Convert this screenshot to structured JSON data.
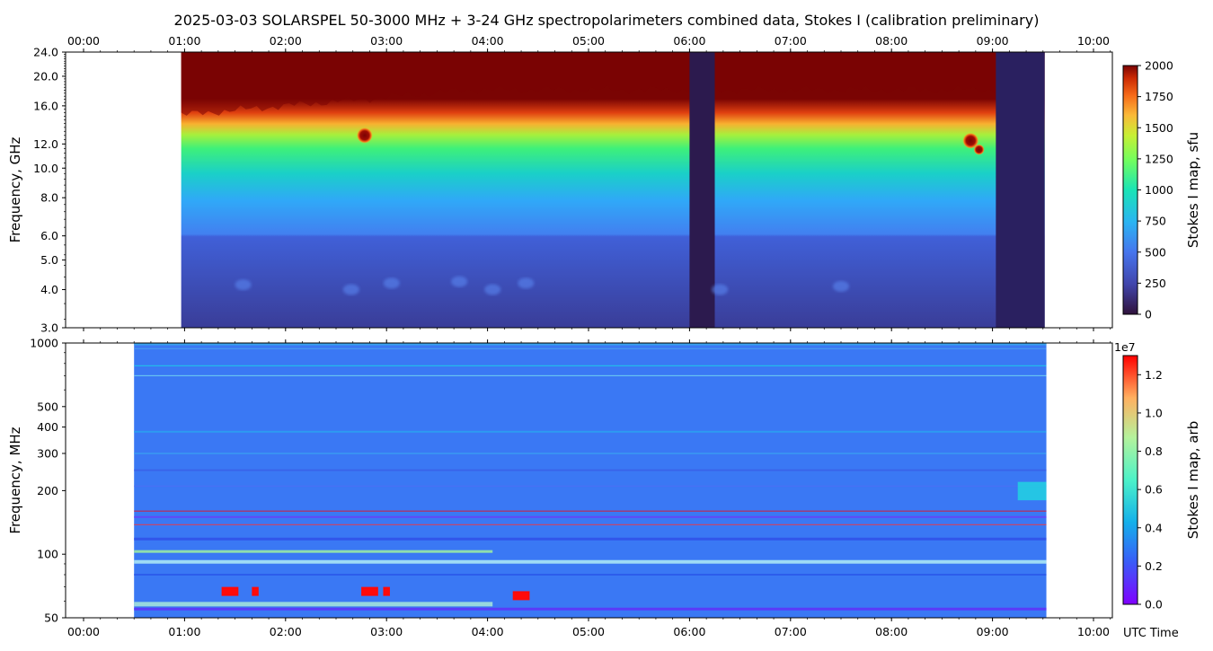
{
  "title": "2025-03-03  SOLARSPEL  50-3000 MHz  +  3-24 GHz  spectropolarimeters combined data,  Stokes I  (calibration preliminary)",
  "x_axis_title": "UTC Time",
  "time_ticks": [
    "00:00",
    "01:00",
    "02:00",
    "03:00",
    "04:00",
    "05:00",
    "06:00",
    "07:00",
    "08:00",
    "09:00",
    "10:00"
  ],
  "chart_data": [
    {
      "type": "heatmap",
      "name": "top-panel",
      "ylabel": "Frequency, GHz",
      "y_scale": "log",
      "ylim": [
        3.0,
        24.0
      ],
      "xlim": [
        "00:00",
        "10:13"
      ],
      "y_ticks": [
        "3.0",
        "4.0",
        "5.0",
        "6.0",
        "8.0",
        "10.0",
        "12.0",
        "16.0",
        "20.0",
        "24.0"
      ],
      "colorbar_label": "Stokes I map, sfu",
      "colorbar_ticks": [
        "0",
        "250",
        "500",
        "750",
        "1000",
        "1250",
        "1500",
        "1750",
        "2000"
      ],
      "colorbar_range": [
        0,
        2000
      ],
      "data_start": "00:58",
      "data_end": "09:31",
      "gaps": [
        [
          "06:00",
          "06:15"
        ],
        [
          "09:02",
          "09:31"
        ]
      ],
      "bursts": [
        {
          "time": "02:47",
          "freq_ghz": 12.8
        },
        {
          "time": "08:47",
          "freq_ghz": 12.3
        },
        {
          "time": "08:52",
          "freq_ghz": 11.5
        }
      ],
      "colormap": "turbo"
    },
    {
      "type": "heatmap",
      "name": "bottom-panel",
      "ylabel": "Frequency, MHz",
      "y_scale": "log",
      "ylim": [
        50,
        1000
      ],
      "xlim": [
        "00:00",
        "10:13"
      ],
      "y_ticks": [
        "50",
        "100",
        "200",
        "300",
        "400",
        "500",
        "1000"
      ],
      "colorbar_label": "Stokes I map, arb",
      "colorbar_multiplier": "1e7",
      "colorbar_ticks": [
        "0.0",
        "0.2",
        "0.4",
        "0.6",
        "0.8",
        "1.0",
        "1.2"
      ],
      "colorbar_range": [
        0,
        1.3
      ],
      "data_start": "00:30",
      "data_end": "09:32",
      "rfi_bursts": [
        {
          "start": "01:22",
          "end": "01:32",
          "freq_mhz": 66
        },
        {
          "start": "01:40",
          "end": "01:44",
          "freq_mhz": 66
        },
        {
          "start": "02:45",
          "end": "02:55",
          "freq_mhz": 66
        },
        {
          "start": "02:58",
          "end": "03:02",
          "freq_mhz": 66
        },
        {
          "start": "04:15",
          "end": "04:25",
          "freq_mhz": 63
        }
      ],
      "colormap": "rainbow"
    }
  ]
}
